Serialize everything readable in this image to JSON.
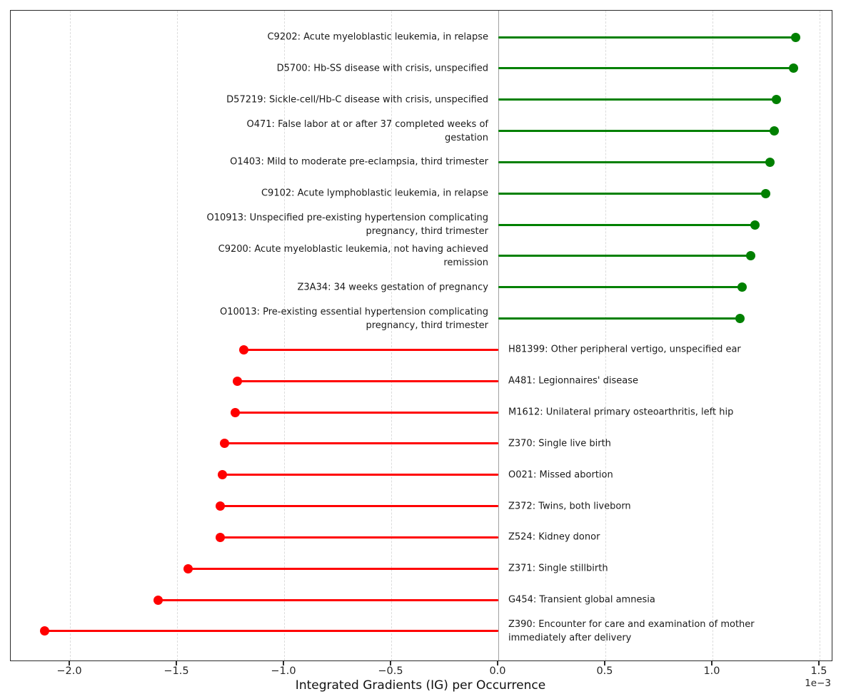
{
  "figure": {
    "xlabel": "Integrated Gradients (IG) per Occurrence",
    "offset_label": "1e−3"
  },
  "chart_data": {
    "type": "bar",
    "variant": "horizontal-lollipop",
    "title": "",
    "xlabel": "Integrated Gradients (IG) per Occurrence",
    "ylabel": "",
    "value_units": "1e-3",
    "xlim": [
      -2.2767,
      1.5567
    ],
    "grid": "vertical-dashed",
    "zero_line": true,
    "legend": "none",
    "positive_color": "#008000",
    "negative_color": "#ff0000",
    "x_ticks": [
      {
        "value": -2.0,
        "label": "−2.0"
      },
      {
        "value": -1.5,
        "label": "−1.5"
      },
      {
        "value": -1.0,
        "label": "−1.0"
      },
      {
        "value": -0.5,
        "label": "−0.5"
      },
      {
        "value": 0.0,
        "label": "0.0"
      },
      {
        "value": 0.5,
        "label": "0.5"
      },
      {
        "value": 1.0,
        "label": "1.0"
      },
      {
        "value": 1.5,
        "label": "1.5"
      }
    ],
    "items": [
      {
        "label": "C9202: Acute myeloblastic leukemia, in relapse",
        "value": 1.39
      },
      {
        "label": "D5700: Hb-SS disease with crisis, unspecified",
        "value": 1.38
      },
      {
        "label": "D57219: Sickle-cell/Hb-C disease with crisis, unspecified",
        "value": 1.3
      },
      {
        "label": "O471: False labor at or after 37 completed weeks of\ngestation",
        "value": 1.29
      },
      {
        "label": "O1403: Mild to moderate pre-eclampsia, third trimester",
        "value": 1.27
      },
      {
        "label": "C9102: Acute lymphoblastic leukemia, in relapse",
        "value": 1.25
      },
      {
        "label": "O10913: Unspecified pre-existing hypertension complicating\npregnancy, third trimester",
        "value": 1.2
      },
      {
        "label": "C9200: Acute myeloblastic leukemia, not having achieved\nremission",
        "value": 1.18
      },
      {
        "label": "Z3A34: 34 weeks gestation of pregnancy",
        "value": 1.14
      },
      {
        "label": "O10013: Pre-existing essential hypertension complicating\npregnancy, third trimester",
        "value": 1.13
      },
      {
        "label": "H81399: Other peripheral vertigo, unspecified ear",
        "value": -1.19
      },
      {
        "label": "A481: Legionnaires' disease",
        "value": -1.22
      },
      {
        "label": "M1612: Unilateral primary osteoarthritis, left hip",
        "value": -1.23
      },
      {
        "label": "Z370: Single live birth",
        "value": -1.28
      },
      {
        "label": "O021: Missed abortion",
        "value": -1.29
      },
      {
        "label": "Z372: Twins, both liveborn",
        "value": -1.3
      },
      {
        "label": "Z524: Kidney donor",
        "value": -1.3
      },
      {
        "label": "Z371: Single stillbirth",
        "value": -1.45
      },
      {
        "label": "G454: Transient global amnesia",
        "value": -1.59
      },
      {
        "label": "Z390: Encounter for care and examination of mother\nimmediately after delivery",
        "value": -2.12
      }
    ]
  }
}
